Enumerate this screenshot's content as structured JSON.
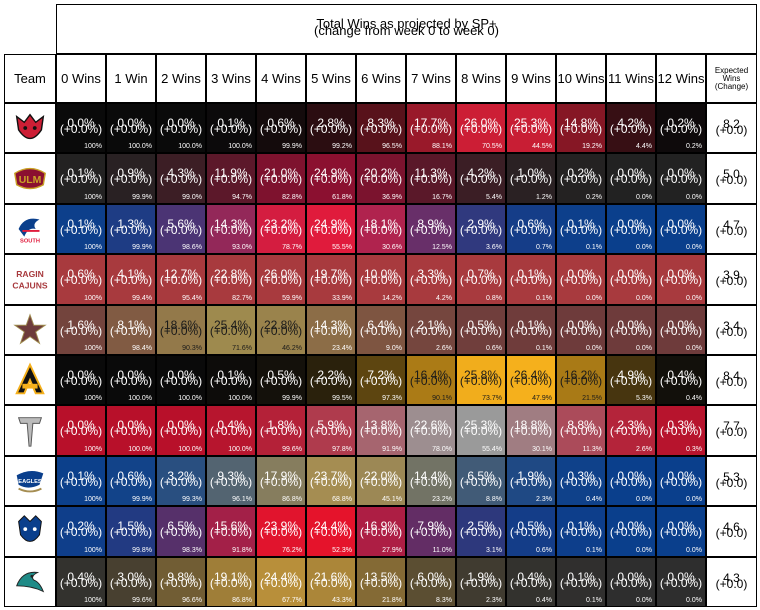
{
  "chart_data": {
    "type": "heatmap",
    "title": "Total Wins as projected by SP+",
    "subtitle": "(change from week 0 to week 0)",
    "row_header": "Team",
    "columns": [
      "0 Wins",
      "1 Win",
      "2 Wins",
      "3 Wins",
      "4 Wins",
      "5 Wins",
      "6 Wins",
      "7 Wins",
      "8 Wins",
      "9 Wins",
      "10 Wins",
      "11 Wins",
      "12 Wins"
    ],
    "expected_header": [
      "Expected",
      "Wins",
      "(Change)"
    ],
    "rows": [
      {
        "team": "arkansas-state",
        "logo": "arkansas-state-logo",
        "color": "#cc1e35",
        "dark": "#0a0a0a",
        "pct": [
          "0.0%",
          "0.0%",
          "0.0%",
          "0.1%",
          "0.6%",
          "2.8%",
          "8.3%",
          "17.7%",
          "26.0%",
          "25.3%",
          "14.8%",
          "4.2%",
          "0.2%"
        ],
        "chg": [
          "(+0.0%)",
          "(+0.0%)",
          "(+0.0%)",
          "(+0.0%)",
          "(+0.0%)",
          "(+0.0%)",
          "(+0.0%)",
          "(+0.0%)",
          "(+0.0%)",
          "(+0.0%)",
          "(+0.0%)",
          "(+0.0%)",
          "(+0.0%)"
        ],
        "cum": [
          "100%",
          "100.0%",
          "100.0%",
          "100.0%",
          "99.9%",
          "99.2%",
          "96.5%",
          "88.1%",
          "70.5%",
          "44.5%",
          "19.2%",
          "4.4%",
          "0.2%"
        ],
        "exp": "8.2",
        "exp_chg": "(+0.0)"
      },
      {
        "team": "ulm",
        "logo": "ulm-logo",
        "color": "#8b1030",
        "dark": "#222222",
        "pct": [
          "0.1%",
          "0.9%",
          "4.3%",
          "11.9%",
          "21.0%",
          "24.9%",
          "20.2%",
          "11.3%",
          "4.2%",
          "1.0%",
          "0.2%",
          "0.0%",
          "0.0%"
        ],
        "chg": [
          "(+0.0%)",
          "(+0.0%)",
          "(+0.0%)",
          "(+0.0%)",
          "(+0.0%)",
          "(+0.0%)",
          "(+0.0%)",
          "(+0.0%)",
          "(+0.0%)",
          "(+0.0%)",
          "(+0.0%)",
          "(+0.0%)",
          "(+0.0%)"
        ],
        "cum": [
          "100%",
          "99.9%",
          "99.0%",
          "94.7%",
          "82.8%",
          "61.8%",
          "36.9%",
          "16.7%",
          "5.4%",
          "1.2%",
          "0.2%",
          "0.0%",
          "0.0%"
        ],
        "exp": "5.0",
        "exp_chg": "(+0.0)"
      },
      {
        "team": "south-alabama",
        "logo": "south-alabama-logo",
        "color": "#e01b3c",
        "dark": "#0a3f8c",
        "pct": [
          "0.1%",
          "1.3%",
          "5.6%",
          "14.3%",
          "23.2%",
          "24.9%",
          "18.1%",
          "8.9%",
          "2.9%",
          "0.6%",
          "0.1%",
          "0.0%",
          "0.0%"
        ],
        "chg": [
          "(+0.0%)",
          "(+0.0%)",
          "(+0.0%)",
          "(+0.0%)",
          "(+0.0%)",
          "(+0.0%)",
          "(+0.0%)",
          "(+0.0%)",
          "(+0.0%)",
          "(+0.0%)",
          "(+0.0%)",
          "(+0.0%)",
          "(+0.0%)"
        ],
        "cum": [
          "100%",
          "99.9%",
          "98.6%",
          "93.0%",
          "78.7%",
          "55.5%",
          "30.6%",
          "12.5%",
          "3.6%",
          "0.7%",
          "0.1%",
          "0.0%",
          "0.0%"
        ],
        "exp": "4.7",
        "exp_chg": "(+0.0)"
      },
      {
        "team": "louisiana",
        "logo": "louisiana-logo",
        "color": "#a83a3e",
        "dark": "#a83a3e",
        "pct": [
          "0.6%",
          "4.1%",
          "12.7%",
          "22.8%",
          "26.0%",
          "19.7%",
          "10.0%",
          "3.3%",
          "0.7%",
          "0.1%",
          "0.0%",
          "0.0%",
          "0.0%"
        ],
        "chg": [
          "(+0.0%)",
          "(+0.0%)",
          "(+0.0%)",
          "(+0.0%)",
          "(+0.0%)",
          "(+0.0%)",
          "(+0.0%)",
          "(+0.0%)",
          "(+0.0%)",
          "(+0.0%)",
          "(+0.0%)",
          "(+0.0%)",
          "(+0.0%)"
        ],
        "cum": [
          "100%",
          "99.4%",
          "95.4%",
          "82.7%",
          "59.9%",
          "33.9%",
          "14.2%",
          "4.2%",
          "0.8%",
          "0.1%",
          "0.0%",
          "0.0%",
          "0.0%"
        ],
        "exp": "3.9",
        "exp_chg": "(+0.0)"
      },
      {
        "team": "texas-state",
        "logo": "texas-state-logo",
        "color": "#9e8a4e",
        "dark": "#6e3b3b",
        "pct": [
          "1.6%",
          "8.1%",
          "18.6%",
          "25.4%",
          "22.8%",
          "14.3%",
          "6.4%",
          "2.1%",
          "0.5%",
          "0.1%",
          "0.0%",
          "0.0%",
          "0.0%"
        ],
        "chg": [
          "(+0.0%)",
          "(+0.0%)",
          "(+0.0%)",
          "(+0.0%)",
          "(+0.0%)",
          "(+0.0%)",
          "(+0.0%)",
          "(+0.0%)",
          "(+0.0%)",
          "(+0.0%)",
          "(+0.0%)",
          "(+0.0%)",
          "(+0.0%)"
        ],
        "cum": [
          "100%",
          "98.4%",
          "90.3%",
          "71.6%",
          "46.2%",
          "23.4%",
          "9.0%",
          "2.6%",
          "0.6%",
          "0.1%",
          "0.0%",
          "0.0%",
          "0.0%"
        ],
        "exp": "3.4",
        "exp_chg": "(+0.0)"
      },
      {
        "team": "appalachian-state",
        "logo": "appalachian-state-logo",
        "color": "#f5b01c",
        "dark": "#0a0a0a",
        "pct": [
          "0.0%",
          "0.0%",
          "0.0%",
          "0.1%",
          "0.5%",
          "2.2%",
          "7.2%",
          "16.4%",
          "25.8%",
          "26.4%",
          "16.2%",
          "4.9%",
          "0.4%"
        ],
        "chg": [
          "(+0.0%)",
          "(+0.0%)",
          "(+0.0%)",
          "(+0.0%)",
          "(+0.0%)",
          "(+0.0%)",
          "(+0.0%)",
          "(+0.0%)",
          "(+0.0%)",
          "(+0.0%)",
          "(+0.0%)",
          "(+0.0%)",
          "(+0.0%)"
        ],
        "cum": [
          "100%",
          "100.0%",
          "100.0%",
          "100.0%",
          "99.9%",
          "99.5%",
          "97.3%",
          "90.1%",
          "73.7%",
          "47.9%",
          "21.5%",
          "5.3%",
          "0.4%"
        ],
        "exp": "8.4",
        "exp_chg": "(+0.0)"
      },
      {
        "team": "troy",
        "logo": "troy-logo",
        "color": "#9a9a9a",
        "dark": "#b8102a",
        "pct": [
          "0.0%",
          "0.0%",
          "0.0%",
          "0.4%",
          "1.8%",
          "5.9%",
          "13.8%",
          "22.6%",
          "25.3%",
          "18.8%",
          "8.8%",
          "2.3%",
          "0.3%"
        ],
        "chg": [
          "(+0.0%)",
          "(+0.0%)",
          "(+0.0%)",
          "(+0.0%)",
          "(+0.0%)",
          "(+0.0%)",
          "(+0.0%)",
          "(+0.0%)",
          "(+0.0%)",
          "(+0.0%)",
          "(+0.0%)",
          "(+0.0%)",
          "(+0.0%)"
        ],
        "cum": [
          "100%",
          "100.0%",
          "100.0%",
          "100.0%",
          "99.6%",
          "97.8%",
          "91.9%",
          "78.0%",
          "55.4%",
          "30.1%",
          "11.3%",
          "2.6%",
          "0.3%"
        ],
        "exp": "7.7",
        "exp_chg": "(+0.0)"
      },
      {
        "team": "georgia-southern",
        "logo": "georgia-southern-logo",
        "color": "#a58d52",
        "dark": "#0a3f8c",
        "pct": [
          "0.1%",
          "0.6%",
          "3.2%",
          "9.3%",
          "17.9%",
          "23.7%",
          "22.0%",
          "14.4%",
          "6.5%",
          "1.9%",
          "0.3%",
          "0.0%",
          "0.0%"
        ],
        "chg": [
          "(+0.0%)",
          "(+0.0%)",
          "(+0.0%)",
          "(+0.0%)",
          "(+0.0%)",
          "(+0.0%)",
          "(+0.0%)",
          "(+0.0%)",
          "(+0.0%)",
          "(+0.0%)",
          "(+0.0%)",
          "(+0.0%)",
          "(+0.0%)"
        ],
        "cum": [
          "100%",
          "99.9%",
          "99.3%",
          "96.1%",
          "86.8%",
          "68.8%",
          "45.1%",
          "23.2%",
          "8.8%",
          "2.3%",
          "0.4%",
          "0.0%",
          "0.0%"
        ],
        "exp": "5.3",
        "exp_chg": "(+0.0)"
      },
      {
        "team": "georgia-state",
        "logo": "georgia-state-logo",
        "color": "#e5132b",
        "dark": "#0a3f8c",
        "pct": [
          "0.2%",
          "1.5%",
          "6.5%",
          "15.6%",
          "23.9%",
          "24.4%",
          "16.9%",
          "7.9%",
          "2.5%",
          "0.5%",
          "0.1%",
          "0.0%",
          "0.0%"
        ],
        "chg": [
          "(+0.0%)",
          "(+0.0%)",
          "(+0.0%)",
          "(+0.0%)",
          "(+0.0%)",
          "(+0.0%)",
          "(+0.0%)",
          "(+0.0%)",
          "(+0.0%)",
          "(+0.0%)",
          "(+0.0%)",
          "(+0.0%)",
          "(+0.0%)"
        ],
        "cum": [
          "100%",
          "99.8%",
          "98.3%",
          "91.8%",
          "76.2%",
          "52.3%",
          "27.9%",
          "11.0%",
          "3.1%",
          "0.6%",
          "0.1%",
          "0.0%",
          "0.0%"
        ],
        "exp": "4.6",
        "exp_chg": "(+0.0)"
      },
      {
        "team": "coastal-carolina",
        "logo": "coastal-carolina-logo",
        "color": "#b88f3a",
        "dark": "#2e2e2e",
        "pct": [
          "0.4%",
          "3.0%",
          "9.8%",
          "19.1%",
          "24.4%",
          "21.6%",
          "13.5%",
          "6.0%",
          "1.9%",
          "0.4%",
          "0.1%",
          "0.0%",
          "0.0%"
        ],
        "chg": [
          "(+0.0%)",
          "(+0.0%)",
          "(+0.0%)",
          "(+0.0%)",
          "(+0.0%)",
          "(+0.0%)",
          "(+0.0%)",
          "(+0.0%)",
          "(+0.0%)",
          "(+0.0%)",
          "(+0.0%)",
          "(+0.0%)",
          "(+0.0%)"
        ],
        "cum": [
          "100%",
          "99.6%",
          "96.6%",
          "86.8%",
          "67.7%",
          "43.3%",
          "21.8%",
          "8.3%",
          "2.3%",
          "0.4%",
          "0.1%",
          "0.0%",
          "0.0%"
        ],
        "exp": "4.3",
        "exp_chg": "(+0.0)"
      }
    ]
  }
}
